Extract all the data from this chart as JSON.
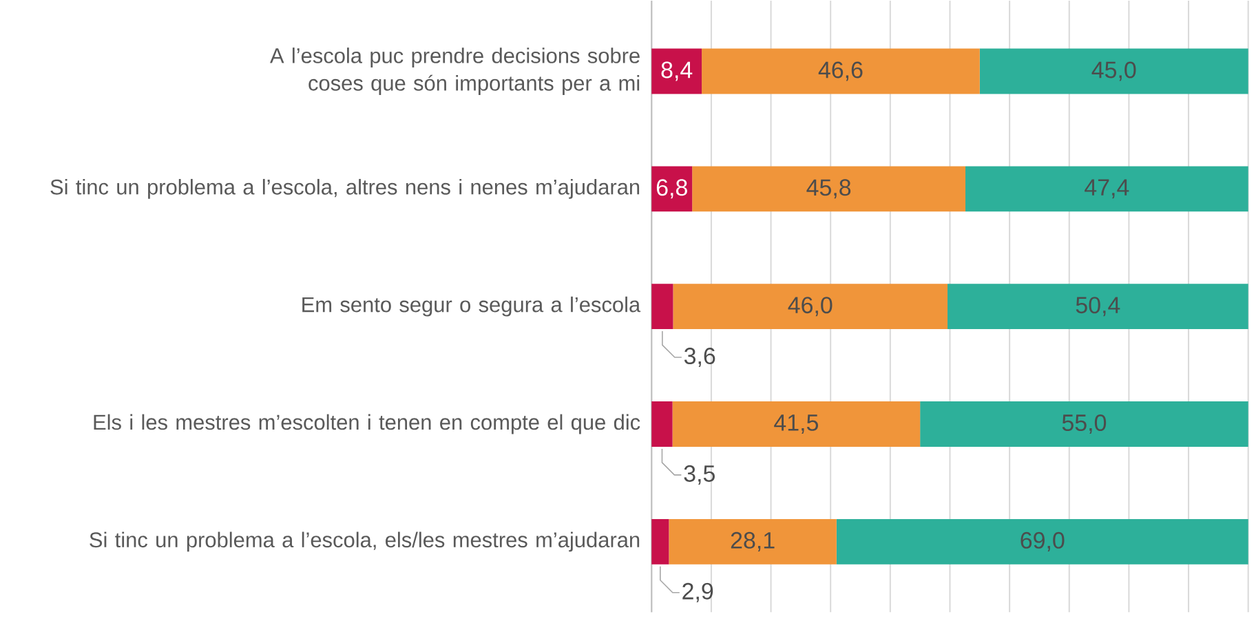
{
  "chart_data": {
    "type": "bar",
    "orientation": "horizontal",
    "stacked": true,
    "categories": [
      "A l’escola puc prendre decisions sobre coses que són importants per a mi",
      "Si tinc un problema a l’escola, altres nens i nenes m’ajudaran",
      "Em sento segur o segura a l’escola",
      "Els i les mestres m’escolten i tenen en compte el que dic",
      "Si tinc un problema a l’escola, els/les mestres m’ajudaran"
    ],
    "series": [
      {
        "color": "#c8114a",
        "values": [
          8.4,
          6.8,
          3.6,
          3.5,
          2.9
        ],
        "value_labels": [
          "8,4",
          "6,8",
          "3,6",
          "3,5",
          "2,9"
        ]
      },
      {
        "color": "#f0953a",
        "values": [
          46.6,
          45.8,
          46.0,
          41.5,
          28.1
        ],
        "value_labels": [
          "46,6",
          "45,8",
          "46,0",
          "41,5",
          "28,1"
        ]
      },
      {
        "color": "#2db09a",
        "values": [
          45.0,
          47.4,
          50.4,
          55.0,
          69.0
        ],
        "value_labels": [
          "45,0",
          "47,4",
          "50,4",
          "55,0",
          "69,0"
        ]
      }
    ],
    "xlim": [
      0,
      100
    ],
    "xticks": [
      {
        "value": 0,
        "label": null
      },
      {
        "value": 10,
        "label": null
      },
      {
        "value": 20,
        "label": null
      },
      {
        "value": 30,
        "label": null
      },
      {
        "value": 40,
        "label": null
      },
      {
        "value": 50,
        "label": null
      },
      {
        "value": 60,
        "label": null
      },
      {
        "value": 70,
        "label": null
      },
      {
        "value": 80,
        "label": null
      },
      {
        "value": 90,
        "label": null
      },
      {
        "value": 100,
        "label": null
      }
    ],
    "tick_labels": "y",
    "grid": "x"
  }
}
